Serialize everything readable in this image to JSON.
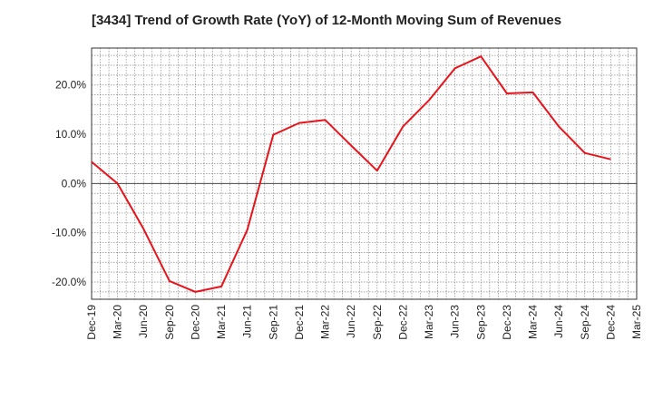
{
  "chart_data": {
    "type": "line",
    "title": "[3434]  Trend of Growth Rate (YoY) of 12-Month Moving Sum of Revenues",
    "xlabel": "",
    "ylabel": "",
    "x_ticks": [
      "Dec-19",
      "Mar-20",
      "Jun-20",
      "Sep-20",
      "Dec-20",
      "Mar-21",
      "Jun-21",
      "Sep-21",
      "Dec-21",
      "Mar-22",
      "Jun-22",
      "Sep-22",
      "Dec-22",
      "Mar-23",
      "Jun-23",
      "Sep-23",
      "Dec-23",
      "Mar-24",
      "Jun-24",
      "Sep-24",
      "Dec-24",
      "Mar-25"
    ],
    "y_ticks": [
      "20.0%",
      "10.0%",
      "0.0%",
      "-10.0%",
      "-20.0%"
    ],
    "y_tick_values": [
      20,
      10,
      0,
      -10,
      -20
    ],
    "ylim": [
      -23.5,
      27.5
    ],
    "grid": true,
    "series": [
      {
        "color": "#e8141c",
        "x": [
          "Dec-19",
          "Mar-20",
          "Jun-20",
          "Sep-20",
          "Dec-20",
          "Mar-21",
          "Jun-21",
          "Sep-21",
          "Dec-21",
          "Mar-22",
          "Jun-22",
          "Sep-22",
          "Dec-22",
          "Mar-23",
          "Jun-23",
          "Sep-23",
          "Dec-23",
          "Mar-24",
          "Jun-24",
          "Sep-24",
          "Dec-24"
        ],
        "values": [
          4.4,
          0.0,
          -9.2,
          -19.8,
          -22.0,
          -20.9,
          -9.4,
          9.9,
          12.3,
          12.9,
          7.7,
          2.6,
          11.6,
          16.9,
          23.4,
          25.8,
          18.3,
          18.5,
          11.6,
          6.2,
          4.9
        ]
      }
    ]
  }
}
